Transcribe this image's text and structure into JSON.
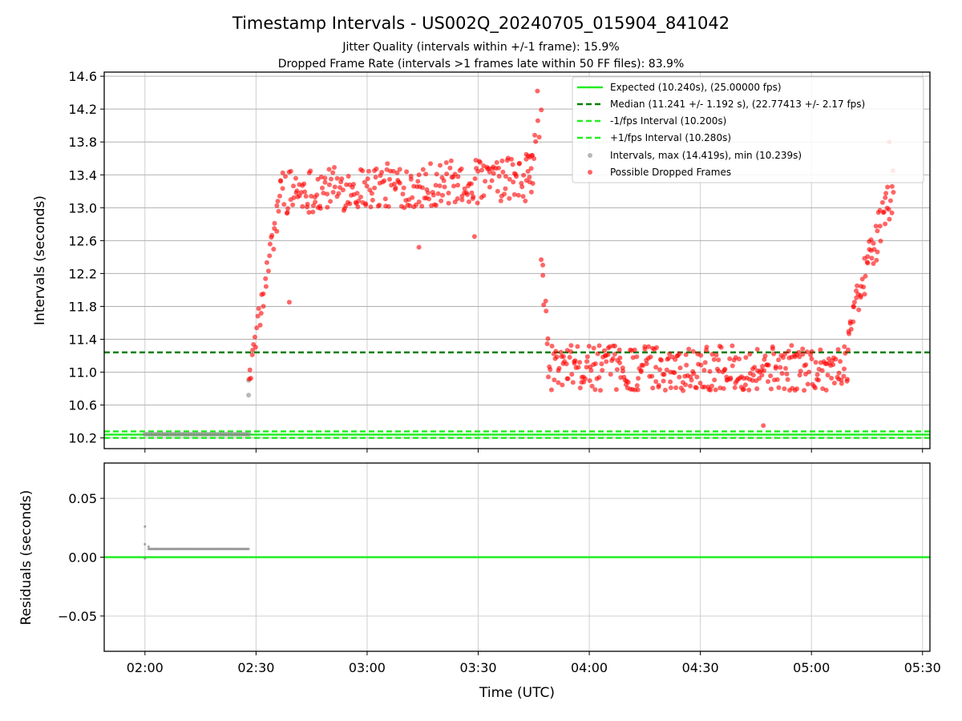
{
  "chart_data": [
    {
      "type": "scatter",
      "title": "Timestamp Intervals - US002Q_20240705_015904_841042",
      "subtitles": [
        "Jitter Quality (intervals within +/-1 frame): 15.9%",
        "Dropped Frame Rate (intervals >1 frames late within 50 FF files): 83.9%"
      ],
      "ylabel": "Intervals (seconds)",
      "ylim": [
        10.07,
        14.65
      ],
      "yticks": [
        "10.2",
        "10.6",
        "11.0",
        "11.4",
        "11.8",
        "12.2",
        "12.6",
        "13.0",
        "13.4",
        "13.8",
        "14.2",
        "14.6"
      ],
      "xlim": [
        "01:49",
        "05:32"
      ],
      "grid": true,
      "legend_position": "top-right",
      "reference_lines": [
        {
          "name": "Expected (10.240s), (25.00000 fps)",
          "y": 10.24,
          "style": "solid",
          "color": "#22ee22"
        },
        {
          "name": "Median (11.241 +/- 1.192 s), (22.77413 +/- 2.17 fps)",
          "y": 11.241,
          "style": "dashed",
          "color": "#008000"
        },
        {
          "name": "-1/fps Interval (10.200s)",
          "y": 10.2,
          "style": "dashed",
          "color": "#22ee22"
        },
        {
          "name": "+1/fps Interval (10.280s)",
          "y": 10.28,
          "style": "dashed",
          "color": "#22ee22"
        }
      ],
      "series": [
        {
          "name": "Intervals, max (14.419s), min (10.239s)",
          "color": "#888888",
          "segments": [
            {
              "x_start": "02:00",
              "x_end": "02:28",
              "y": 10.245,
              "count": 40
            },
            {
              "points": [
                [
                  "02:28",
                  10.72
                ],
                [
                  "02:28",
                  10.9
                ]
              ]
            }
          ]
        },
        {
          "name": "Possible Dropped Frames",
          "color": "#ff0000",
          "segments": [
            {
              "x_start": "02:28",
              "x_end": "02:36",
              "y_start": 10.9,
              "y_end": 13.0,
              "spread": 0.35,
              "count": 30
            },
            {
              "x_start": "02:36",
              "x_end": "03:45",
              "y_start": 13.2,
              "y_end": 13.35,
              "spread": 0.55,
              "count": 260
            },
            {
              "x_start": "03:43",
              "x_end": "03:47",
              "y_start": 13.5,
              "y_end": 14.1,
              "spread": 0.4,
              "count": 10
            },
            {
              "x_start": "03:47",
              "x_end": "03:49",
              "y_start": 12.4,
              "y_end": 11.3,
              "spread": 0.3,
              "count": 8
            },
            {
              "x_start": "03:49",
              "x_end": "05:10",
              "y_start": 11.05,
              "y_end": 11.05,
              "spread": 0.55,
              "count": 330
            },
            {
              "x_start": "05:10",
              "x_end": "05:22",
              "y_start": 11.6,
              "y_end": 13.2,
              "spread": 0.5,
              "count": 55
            },
            {
              "points": [
                [
                  "03:46",
                  14.42
                ],
                [
                  "05:21",
                  13.8
                ],
                [
                  "05:22",
                  13.45
                ],
                [
                  "04:47",
                  10.35
                ],
                [
                  "03:14",
                  12.52
                ],
                [
                  "02:39",
                  11.85
                ],
                [
                  "03:29",
                  12.65
                ]
              ]
            }
          ]
        }
      ]
    },
    {
      "type": "scatter",
      "ylabel": "Residuals (seconds)",
      "xlabel": "Time (UTC)",
      "ylim": [
        -0.08,
        0.08
      ],
      "yticks": [
        "0.05",
        "0.00",
        "−0.05"
      ],
      "xticks": [
        "02:00",
        "02:30",
        "03:00",
        "03:30",
        "04:00",
        "04:30",
        "05:00",
        "05:30"
      ],
      "grid": true,
      "reference_lines": [
        {
          "y": 0.0,
          "style": "solid",
          "color": "#22ee22"
        }
      ],
      "series": [
        {
          "color": "#777777",
          "points": [
            [
              "02:00",
              0.026
            ],
            [
              "02:00",
              -0.001
            ],
            [
              "02:00",
              0.011
            ],
            [
              "02:01",
              0.009
            ]
          ],
          "segments": [
            {
              "x_start": "02:01",
              "x_end": "02:28",
              "y": 0.007,
              "count": 70
            }
          ]
        }
      ]
    }
  ]
}
